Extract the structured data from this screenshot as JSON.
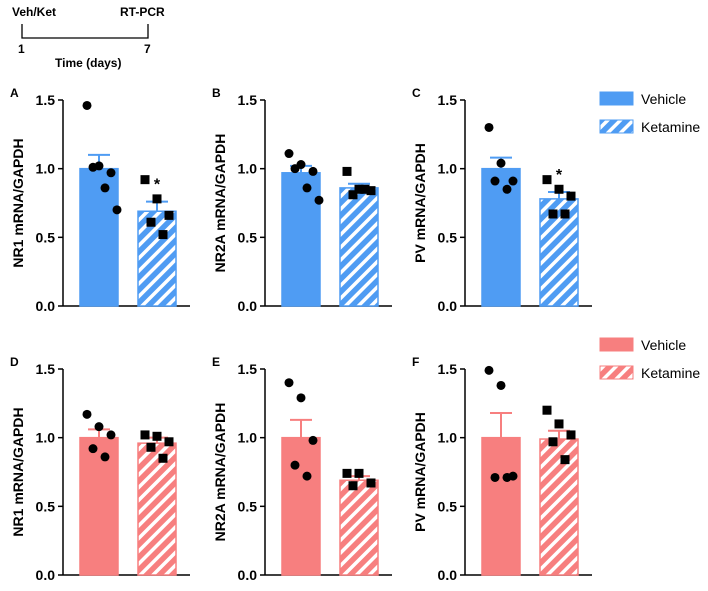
{
  "timeline": {
    "start_label": "Veh/Ket",
    "end_label": "RT-PCR",
    "day_start": "1",
    "day_end": "7",
    "axis_label": "Time (days)"
  },
  "colors": {
    "blue": "#4f9cf3",
    "red": "#f77f7f"
  },
  "chart_data": [
    {
      "type": "bar",
      "panel": "A",
      "ylabel": "NR1 mRNA/GAPDH",
      "ylim": [
        0,
        1.5
      ],
      "yticks": [
        "0.0",
        "0.5",
        "1.0",
        "1.5"
      ],
      "color": "blue",
      "categories": [
        "Vehicle",
        "Ketamine"
      ],
      "means": [
        1.0,
        0.69
      ],
      "sem": [
        0.1,
        0.07
      ],
      "points": [
        [
          1.46,
          1.02,
          0.97,
          1.01,
          0.86,
          0.7
        ],
        [
          0.92,
          0.78,
          0.66,
          0.61,
          0.52
        ]
      ],
      "significance": [
        "",
        "*"
      ]
    },
    {
      "type": "bar",
      "panel": "B",
      "ylabel": "NR2A mRNA/GAPDH",
      "ylim": [
        0,
        1.5
      ],
      "yticks": [
        "0.0",
        "0.5",
        "1.0",
        "1.5"
      ],
      "color": "blue",
      "categories": [
        "Vehicle",
        "Ketamine"
      ],
      "means": [
        0.97,
        0.86
      ],
      "sem": [
        0.05,
        0.03
      ],
      "points": [
        [
          1.11,
          1.03,
          0.98,
          1.0,
          0.86,
          0.77
        ],
        [
          0.98,
          0.85,
          0.84,
          0.81,
          0.85
        ]
      ],
      "significance": [
        "",
        ""
      ]
    },
    {
      "type": "bar",
      "panel": "C",
      "ylabel": "PV mRNA/GAPDH",
      "ylim": [
        0,
        1.5
      ],
      "yticks": [
        "0.0",
        "0.5",
        "1.0",
        "1.5"
      ],
      "color": "blue",
      "categories": [
        "Vehicle",
        "Ketamine"
      ],
      "means": [
        1.0,
        0.78
      ],
      "sem": [
        0.08,
        0.05
      ],
      "points": [
        [
          1.3,
          1.04,
          0.91,
          0.91,
          0.85
        ],
        [
          0.92,
          0.85,
          0.8,
          0.67,
          0.67
        ]
      ],
      "significance": [
        "",
        "*"
      ]
    },
    {
      "type": "bar",
      "panel": "D",
      "ylabel": "NR1 mRNA/GAPDH",
      "ylim": [
        0,
        1.5
      ],
      "yticks": [
        "0.0",
        "0.5",
        "1.0",
        "1.5"
      ],
      "color": "red",
      "categories": [
        "Vehicle",
        "Ketamine"
      ],
      "means": [
        1.0,
        0.96
      ],
      "sem": [
        0.06,
        0.04
      ],
      "points": [
        [
          1.17,
          1.08,
          1.02,
          0.92,
          0.86
        ],
        [
          1.02,
          1.01,
          0.97,
          0.93,
          0.85
        ]
      ],
      "significance": [
        "",
        ""
      ]
    },
    {
      "type": "bar",
      "panel": "E",
      "ylabel": "NR2A mRNA/GAPDH",
      "ylim": [
        0,
        1.5
      ],
      "yticks": [
        "0.0",
        "0.5",
        "1.0",
        "1.5"
      ],
      "color": "red",
      "categories": [
        "Vehicle",
        "Ketamine"
      ],
      "means": [
        1.0,
        0.69
      ],
      "sem": [
        0.13,
        0.03
      ],
      "points": [
        [
          1.4,
          1.29,
          0.98,
          0.8,
          0.72
        ],
        [
          0.74,
          0.74,
          0.67,
          0.65
        ]
      ],
      "significance": [
        "",
        ""
      ]
    },
    {
      "type": "bar",
      "panel": "F",
      "ylabel": "PV mRNA/GAPDH",
      "ylim": [
        0,
        1.5
      ],
      "yticks": [
        "0.0",
        "0.5",
        "1.0",
        "1.5"
      ],
      "color": "red",
      "categories": [
        "Vehicle",
        "Ketamine"
      ],
      "means": [
        1.0,
        0.99
      ],
      "sem": [
        0.18,
        0.06
      ],
      "points": [
        [
          1.49,
          1.38,
          0.72,
          0.71,
          0.71
        ],
        [
          1.2,
          1.1,
          1.02,
          0.97,
          0.84
        ]
      ],
      "significance": [
        "",
        ""
      ]
    }
  ],
  "legends": [
    {
      "color": "blue",
      "items": [
        "Vehicle",
        "Ketamine"
      ]
    },
    {
      "color": "red",
      "items": [
        "Vehicle",
        "Ketamine"
      ]
    }
  ]
}
